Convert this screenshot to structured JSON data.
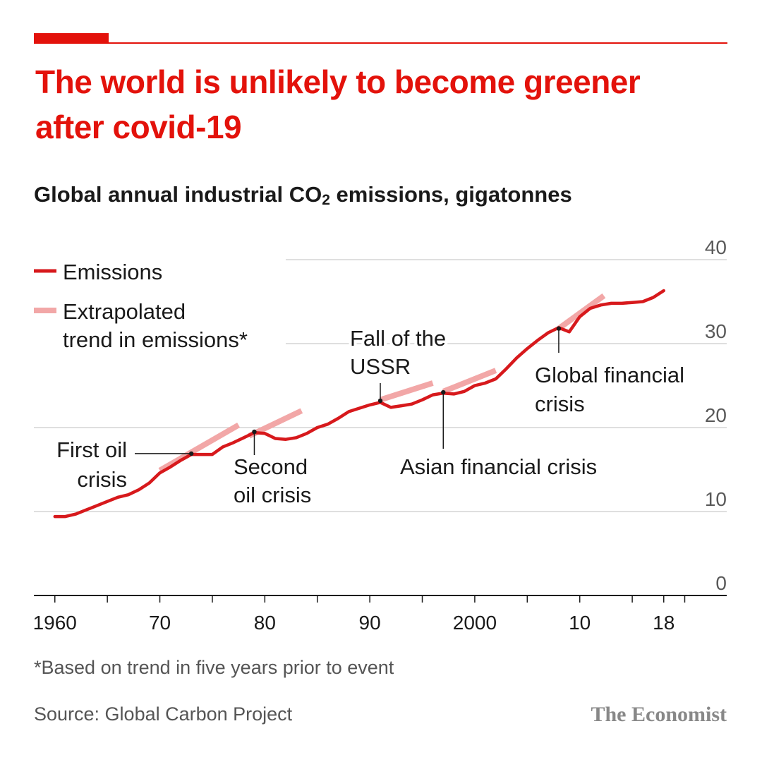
{
  "header": {
    "title": "The world is unlikely to become greener after covid-19",
    "subtitle_prefix": "Global annual industrial CO",
    "subtitle_subscript": "2",
    "subtitle_suffix": " emissions, gigatonnes"
  },
  "colors": {
    "brand_red": "#e3120b",
    "emissions_line": "#d7191c",
    "trend_line": "#f2a7a7",
    "grid": "#cccccc",
    "text": "#1a1a1a",
    "muted": "#595959"
  },
  "legend": {
    "emissions": "Emissions",
    "trend_line1": "Extrapolated",
    "trend_line2": "trend in emissions*"
  },
  "footer": {
    "footnote": "*Based on trend in five years prior to event",
    "source": "Source: Global Carbon Project",
    "brand": "The Economist"
  },
  "chart_data": {
    "type": "line",
    "title": "The world is unlikely to become greener after covid-19",
    "subtitle": "Global annual industrial CO2 emissions, gigatonnes",
    "xlim": [
      1958,
      2024
    ],
    "ylim": [
      0,
      40
    ],
    "y_ticks": [
      0,
      10,
      20,
      30,
      40
    ],
    "x_ticks": [
      {
        "value": 1960,
        "label": "1960"
      },
      {
        "value": 1970,
        "label": "70"
      },
      {
        "value": 1980,
        "label": "80"
      },
      {
        "value": 1990,
        "label": "90"
      },
      {
        "value": 2000,
        "label": "2000"
      },
      {
        "value": 2010,
        "label": "10"
      },
      {
        "value": 2018,
        "label": "18"
      }
    ],
    "grid": "horizontal",
    "legend_position": "top-left",
    "series": [
      {
        "name": "Emissions",
        "x": [
          1960,
          1961,
          1962,
          1963,
          1964,
          1965,
          1966,
          1967,
          1968,
          1969,
          1970,
          1971,
          1972,
          1973,
          1974,
          1975,
          1976,
          1977,
          1978,
          1979,
          1980,
          1981,
          1982,
          1983,
          1984,
          1985,
          1986,
          1987,
          1988,
          1989,
          1990,
          1991,
          1992,
          1993,
          1994,
          1995,
          1996,
          1997,
          1998,
          1999,
          2000,
          2001,
          2002,
          2003,
          2004,
          2005,
          2006,
          2007,
          2008,
          2009,
          2010,
          2011,
          2012,
          2013,
          2014,
          2015,
          2016,
          2017,
          2018
        ],
        "values": [
          9.4,
          9.4,
          9.7,
          10.2,
          10.7,
          11.2,
          11.7,
          12.0,
          12.6,
          13.4,
          14.6,
          15.3,
          16.1,
          16.8,
          16.8,
          16.8,
          17.7,
          18.2,
          18.8,
          19.4,
          19.3,
          18.7,
          18.6,
          18.8,
          19.3,
          20.0,
          20.4,
          21.1,
          21.9,
          22.3,
          22.7,
          23.0,
          22.4,
          22.6,
          22.8,
          23.3,
          23.9,
          24.1,
          24.0,
          24.3,
          25.0,
          25.3,
          25.8,
          27.0,
          28.3,
          29.4,
          30.4,
          31.3,
          31.9,
          31.4,
          33.2,
          34.2,
          34.6,
          34.8,
          34.8,
          34.9,
          35.0,
          35.5,
          36.3
        ]
      }
    ],
    "trend_lines": [
      {
        "x": [
          1970,
          1977.5
        ],
        "values": [
          14.9,
          20.3
        ]
      },
      {
        "x": [
          1978.5,
          1983.5
        ],
        "values": [
          19.0,
          22.0
        ]
      },
      {
        "x": [
          1991,
          1996
        ],
        "values": [
          23.3,
          25.3
        ]
      },
      {
        "x": [
          1997,
          2002
        ],
        "values": [
          24.3,
          26.8
        ]
      },
      {
        "x": [
          2008,
          2012.3
        ],
        "values": [
          31.8,
          35.7
        ]
      }
    ],
    "annotations": [
      {
        "label": "First oil crisis",
        "year": 1973,
        "value": 16.9
      },
      {
        "label": "Second oil crisis",
        "year": 1979,
        "value": 19.5
      },
      {
        "label": "Fall of the USSR",
        "year": 1991,
        "value": 23.2
      },
      {
        "label": "Asian financial crisis",
        "year": 1997,
        "value": 24.2
      },
      {
        "label": "Global financial crisis",
        "year": 2008,
        "value": 31.8
      }
    ]
  }
}
